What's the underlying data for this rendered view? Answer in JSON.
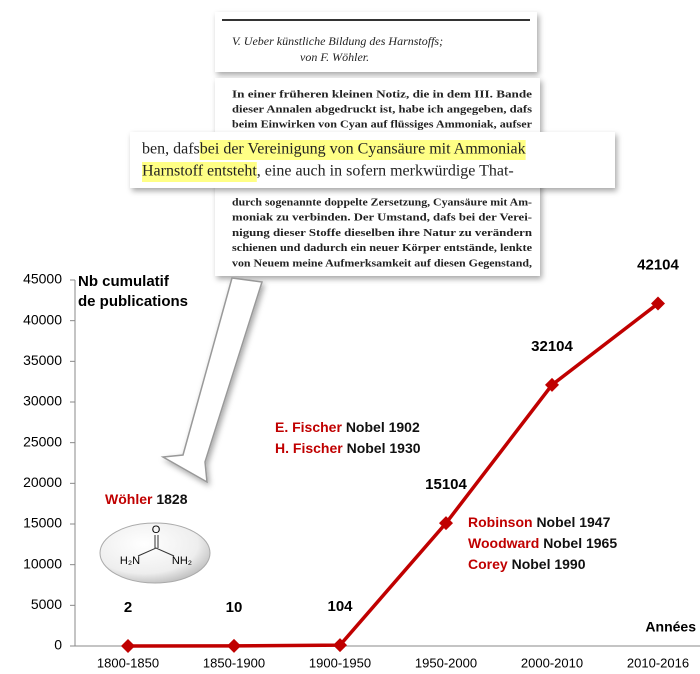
{
  "chart_data": {
    "type": "line",
    "y_label": [
      "Nb cumulatif",
      "de publications"
    ],
    "x_label": "Années",
    "categories": [
      "1800-1850",
      "1850-1900",
      "1900-1950",
      "1950-2000",
      "2000-2010",
      "2010-2016"
    ],
    "values": [
      2,
      10,
      104,
      15104,
      32104,
      42104
    ],
    "color": "#c00000",
    "ylim": [
      0,
      45000
    ],
    "yticks": [
      0,
      5000,
      10000,
      15000,
      20000,
      25000,
      30000,
      35000,
      40000,
      45000
    ],
    "annotations": [
      {
        "name": "Wöhler",
        "detail": "1828"
      },
      {
        "name": "E. Fischer",
        "detail": "Nobel 1902"
      },
      {
        "name": "H. Fischer",
        "detail": "Nobel 1930"
      },
      {
        "name": "Robinson",
        "detail": "Nobel 1947"
      },
      {
        "name": "Woodward",
        "detail": "Nobel 1965"
      },
      {
        "name": "Corey",
        "detail": "Nobel 1990"
      }
    ],
    "molecule": {
      "top": "O",
      "left": "H₂N",
      "right": "NH₂"
    },
    "document": {
      "title": [
        "V.   Ueber künstliche Bildung des Harnstoffs;",
        "von F. Wöhler."
      ],
      "body_top": [
        "In einer früheren kleinen Notiz, die in dem III. Bande",
        "dieser Annalen abgedruckt ist, habe ich angegeben, dafs",
        "beim Einwirken von Cyan auf flüssiges Ammoniak, aufser"
      ],
      "highlight": [
        [
          {
            "text": "ben, dafs ",
            "highlight": false
          },
          {
            "text": "bei der Vereinigung von Cyansäure mit Ammoniak",
            "highlight": true
          }
        ],
        [
          {
            "text": "Harnstoff entsteht",
            "highlight": true
          },
          {
            "text": ", eine auch in sofern merkwürdige That-",
            "highlight": false
          }
        ]
      ],
      "body_bottom": [
        "durch sogenannte doppelte Zersetzung, Cyansäure mit Am-",
        "moniak zu verbinden. Der Umstand, dafs bei der Verei-",
        "nigung dieser Stoffe dieselben ihre Natur zu verändern",
        "schienen und dadurch ein neuer Körper entstände, lenkte",
        "von Neuem meine Aufmerksamkeit auf diesen Gegenstand,"
      ]
    }
  }
}
